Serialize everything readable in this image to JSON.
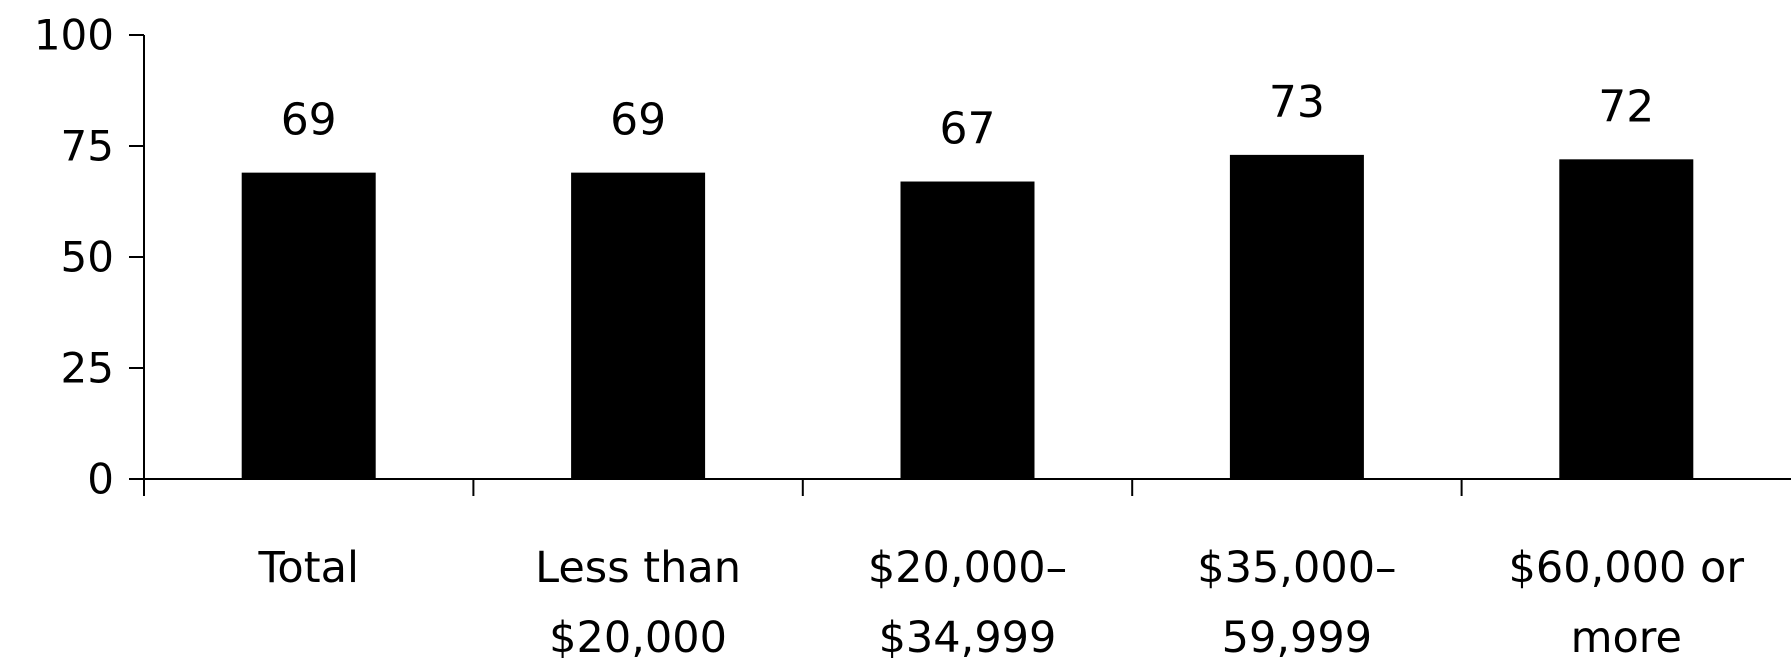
{
  "chart_data": {
    "type": "bar",
    "title": "",
    "xlabel": "",
    "ylabel": "",
    "categories": [
      [
        "Total"
      ],
      [
        "Less than",
        "$20,000"
      ],
      [
        "$20,000–",
        "$34,999"
      ],
      [
        "$35,000–",
        "59,999"
      ],
      [
        "$60,000 or",
        "more"
      ]
    ],
    "values": [
      69,
      69,
      67,
      73,
      72
    ],
    "data_labels": [
      "69",
      "69",
      "67",
      "73",
      "72"
    ],
    "ylim": [
      0,
      100
    ],
    "yticks": [
      0,
      25,
      50,
      75,
      100
    ],
    "ytick_labels": [
      "0",
      "25",
      "50",
      "75",
      "100"
    ],
    "grid": false,
    "legend": "none",
    "bar_color": "#000000",
    "axis_color": "#000000"
  }
}
